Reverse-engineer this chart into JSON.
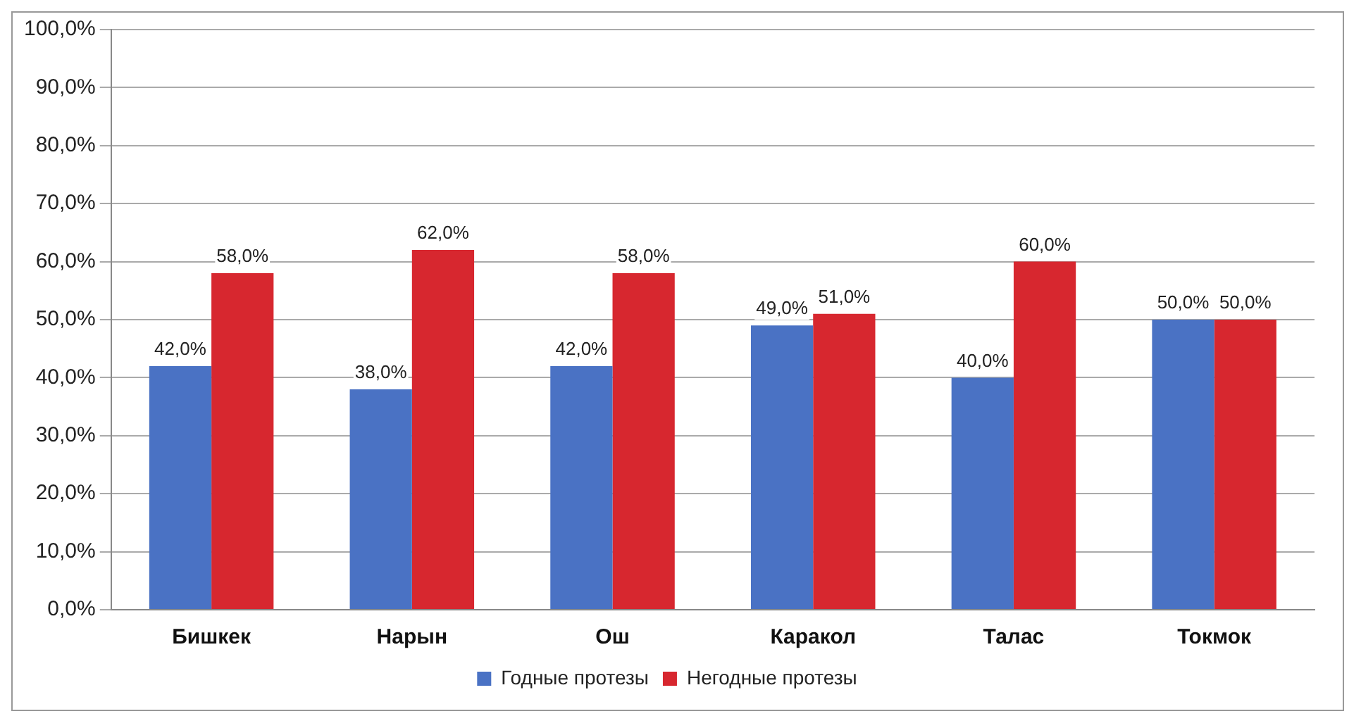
{
  "chart_data": {
    "type": "bar",
    "categories": [
      "Бишкек",
      "Нарын",
      "Ош",
      "Каракол",
      "Талас",
      "Токмок"
    ],
    "series": [
      {
        "name": "Годные протезы",
        "color": "#4a72c4",
        "values": [
          42,
          38,
          42,
          49,
          40,
          50
        ],
        "value_labels": [
          "42,0%",
          "38,0%",
          "42,0%",
          "49,0%",
          "40,0%",
          "50,0%"
        ]
      },
      {
        "name": "Негодные протезы",
        "color": "#d7272f",
        "values": [
          58,
          62,
          58,
          51,
          60,
          50
        ],
        "value_labels": [
          "58,0%",
          "62,0%",
          "58,0%",
          "51,0%",
          "60,0%",
          "50,0%"
        ]
      }
    ],
    "ylim": [
      0,
      100
    ],
    "yticks": [
      {
        "value": 0,
        "label": "0,0%"
      },
      {
        "value": 10,
        "label": "10,0%"
      },
      {
        "value": 20,
        "label": "20,0%"
      },
      {
        "value": 30,
        "label": "30,0%"
      },
      {
        "value": 40,
        "label": "40,0%"
      },
      {
        "value": 50,
        "label": "50,0%"
      },
      {
        "value": 60,
        "label": "60,0%"
      },
      {
        "value": 70,
        "label": "70,0%"
      },
      {
        "value": 80,
        "label": "80,0%"
      },
      {
        "value": 90,
        "label": "90,0%"
      },
      {
        "value": 100,
        "label": "100,0%"
      }
    ],
    "grid": "y",
    "legend": "bottom"
  }
}
